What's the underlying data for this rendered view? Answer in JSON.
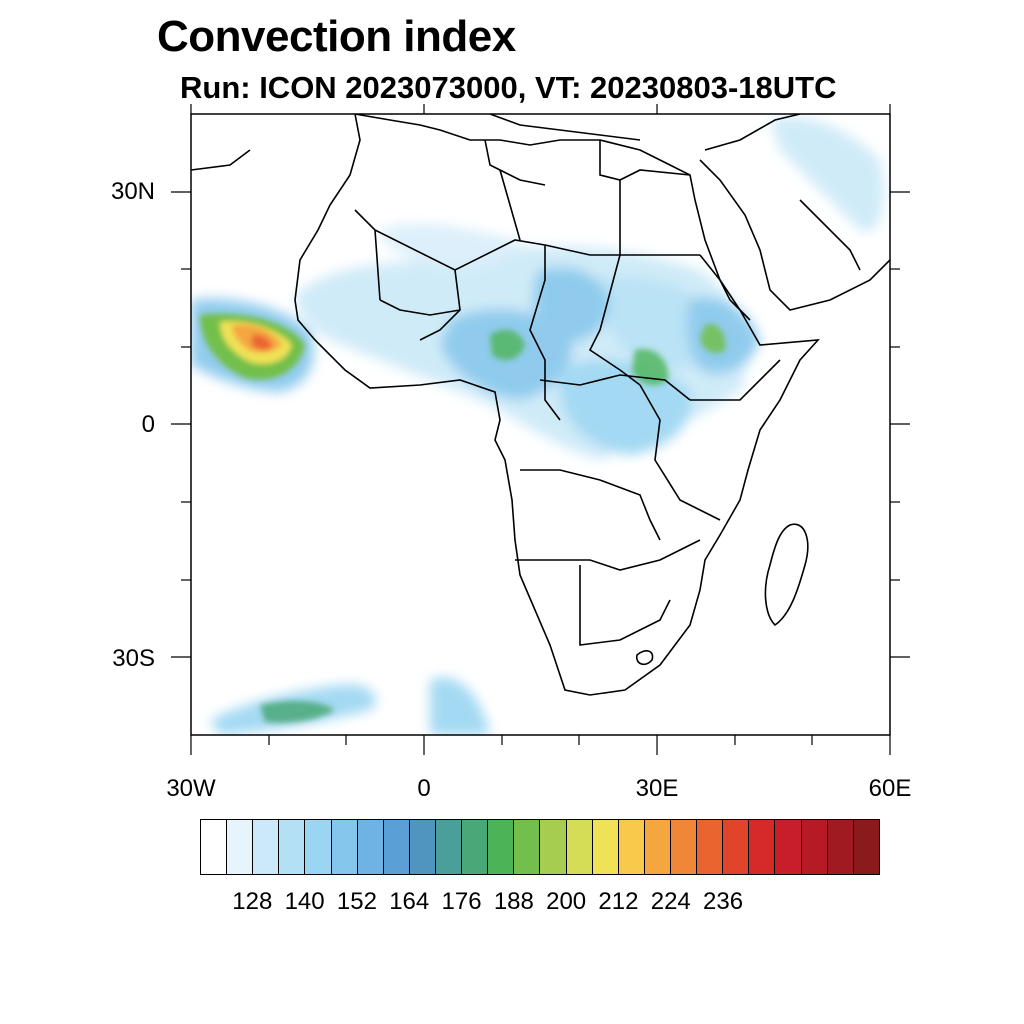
{
  "title": "Convection index",
  "subtitle": "Run: ICON 2023073000,  VT: 20230803-18UTC",
  "map": {
    "region": "Africa",
    "lon_range": [
      -30,
      60
    ],
    "lat_range": [
      -40,
      40
    ],
    "lat_labels": [
      "30N",
      "0",
      "30S"
    ],
    "lon_labels": [
      "30W",
      "0",
      "30E",
      "60E"
    ],
    "coastline_color": "#000000"
  },
  "colorbar": {
    "colors": [
      "#ffffff",
      "#e6f4fc",
      "#cbe9f8",
      "#b3e0f5",
      "#9ad5f2",
      "#84c6ec",
      "#6eb3e4",
      "#5a9fd6",
      "#4f95c0",
      "#4b9e99",
      "#4aa878",
      "#4cb456",
      "#72bf4b",
      "#a6cd4f",
      "#d5dc55",
      "#f0e257",
      "#f8c94b",
      "#f5a63f",
      "#f08637",
      "#ea6430",
      "#e0452b",
      "#d62a2a",
      "#c71e29",
      "#b51a25",
      "#a01a22",
      "#8b1a1d"
    ],
    "labels": [
      "128",
      "140",
      "152",
      "164",
      "176",
      "188",
      "200",
      "212",
      "224",
      "236"
    ]
  }
}
